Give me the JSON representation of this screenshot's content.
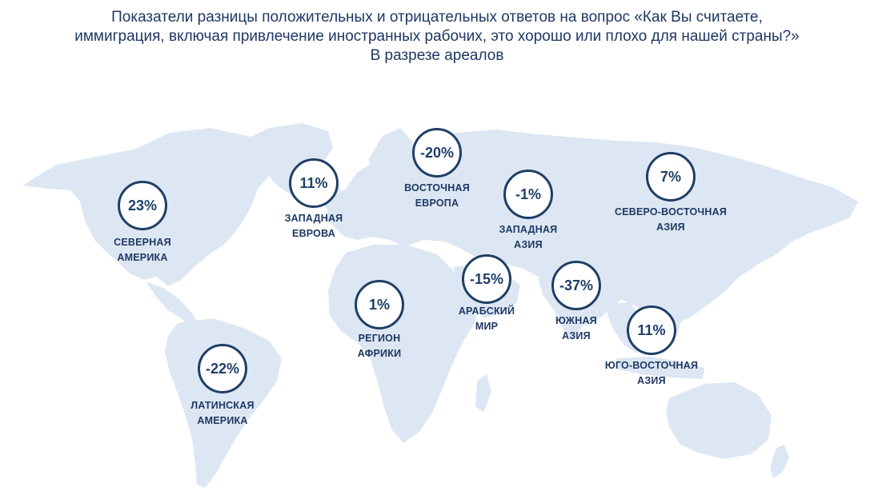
{
  "title": {
    "line1": "Показатели разницы положительных и отрицательных ответов на вопрос «Как Вы считаете,",
    "line2": "иммиграция, включая привлечение иностранных рабочих, это хорошо или плохо для нашей страны?»",
    "line3": "В разрезе ареалов"
  },
  "regions": {
    "north_america": {
      "value": "23%",
      "label1": "СЕВЕРНАЯ",
      "label2": "АМЕРИКА"
    },
    "western_europe": {
      "value": "11%",
      "label1": "ЗАПАДНАЯ",
      "label2": "ЕВРОВА"
    },
    "eastern_europe": {
      "value": "-20%",
      "label1": "ВОСТОЧНАЯ",
      "label2": "ЕВРОПА"
    },
    "western_asia": {
      "value": "-1%",
      "label1": "ЗАПАДНАЯ",
      "label2": "АЗИЯ"
    },
    "northeast_asia": {
      "value": "7%",
      "label1": "СЕВЕРО-ВОСТОЧНАЯ",
      "label2": "АЗИЯ"
    },
    "arab_world": {
      "value": "-15%",
      "label1": "АРАБСКИЙ",
      "label2": "МИР"
    },
    "africa": {
      "value": "1%",
      "label1": "РЕГИОН",
      "label2": "АФРИКИ"
    },
    "south_asia": {
      "value": "-37%",
      "label1": "ЮЖНАЯ",
      "label2": "АЗИЯ"
    },
    "southeast_asia": {
      "value": "11%",
      "label1": "ЮГО-ВОСТОЧНАЯ",
      "label2": "АЗИЯ"
    },
    "latin_america": {
      "value": "-22%",
      "label1": "ЛАТИНСКАЯ",
      "label2": "АМЕРИКА"
    }
  },
  "colors": {
    "land": "#dde7f3",
    "circle_stroke": "#1f3f66",
    "text": "#1f3864"
  }
}
